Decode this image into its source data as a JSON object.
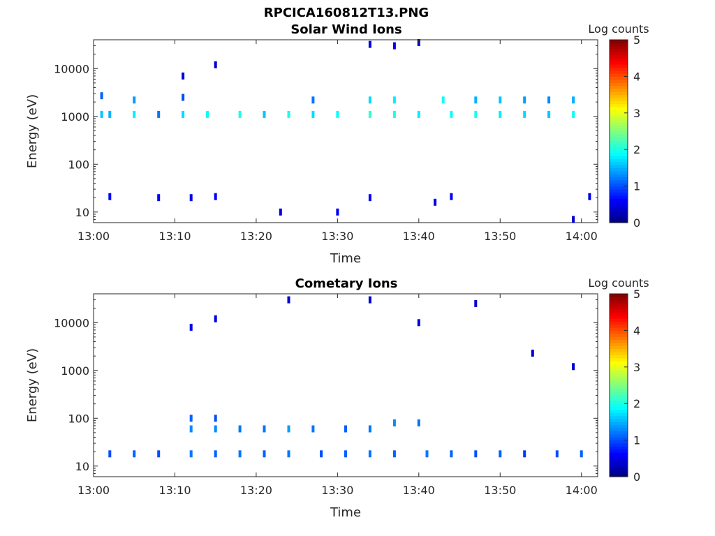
{
  "figure_title": "RPCICA160812T13.PNG",
  "colors": {
    "axis": "#262626",
    "background": "#ffffff",
    "colormap": "jet"
  },
  "chart_data": [
    {
      "type": "heatmap",
      "title": "Solar Wind Ions",
      "xlabel": "Time",
      "ylabel": "Energy (eV)",
      "xlim": [
        "13:00",
        "14:02"
      ],
      "x_ticks": [
        "13:00",
        "13:10",
        "13:20",
        "13:30",
        "13:40",
        "13:50",
        "14:00"
      ],
      "ylim": [
        6,
        40000
      ],
      "yscale": "log",
      "y_ticks": [
        "10",
        "100",
        "1000",
        "10000"
      ],
      "colorbar": {
        "label": "Log counts",
        "min": 0,
        "max": 5,
        "ticks": [
          "0",
          "1",
          "2",
          "3",
          "4",
          "5"
        ],
        "colormap": "jet"
      },
      "grid": false,
      "cells": [
        [
          "13:01",
          1100,
          1.6
        ],
        [
          "13:02",
          1100,
          1.5
        ],
        [
          "13:05",
          1100,
          1.8
        ],
        [
          "13:08",
          1100,
          1.2
        ],
        [
          "13:11",
          1100,
          1.7
        ],
        [
          "13:14",
          1100,
          1.9
        ],
        [
          "13:18",
          1100,
          2.0
        ],
        [
          "13:21",
          1100,
          1.6
        ],
        [
          "13:24",
          1100,
          2.0
        ],
        [
          "13:27",
          1100,
          1.7
        ],
        [
          "13:30",
          1100,
          1.9
        ],
        [
          "13:34",
          1100,
          2.1
        ],
        [
          "13:37",
          1100,
          2.0
        ],
        [
          "13:40",
          1100,
          1.8
        ],
        [
          "13:44",
          1100,
          1.9
        ],
        [
          "13:47",
          1100,
          2.0
        ],
        [
          "13:50",
          1100,
          1.8
        ],
        [
          "13:53",
          1100,
          1.7
        ],
        [
          "13:56",
          1100,
          1.6
        ],
        [
          "13:59",
          1100,
          1.9
        ],
        [
          "13:34",
          2200,
          1.7
        ],
        [
          "13:37",
          2200,
          1.8
        ],
        [
          "13:43",
          2200,
          1.9
        ],
        [
          "13:47",
          2200,
          1.5
        ],
        [
          "13:50",
          2200,
          1.6
        ],
        [
          "13:53",
          2200,
          1.4
        ],
        [
          "13:56",
          2200,
          1.3
        ],
        [
          "13:59",
          2200,
          1.5
        ],
        [
          "13:05",
          2200,
          1.4
        ],
        [
          "13:27",
          2200,
          1.2
        ],
        [
          "13:01",
          2700,
          1.1
        ],
        [
          "13:11",
          2500,
          1.0
        ],
        [
          "13:02",
          21,
          0.6
        ],
        [
          "13:08",
          20,
          0.6
        ],
        [
          "13:12",
          20,
          0.5
        ],
        [
          "13:15",
          21,
          0.6
        ],
        [
          "13:23",
          10,
          0.5
        ],
        [
          "13:30",
          10,
          0.6
        ],
        [
          "13:34",
          20,
          0.6
        ],
        [
          "13:42",
          16,
          0.5
        ],
        [
          "13:44",
          21,
          0.6
        ],
        [
          "13:59",
          7,
          0.4
        ],
        [
          "14:01",
          21,
          0.5
        ],
        [
          "13:40",
          35000,
          0.5
        ],
        [
          "13:37",
          30000,
          0.6
        ],
        [
          "13:34",
          32000,
          0.5
        ],
        [
          "13:11",
          7000,
          0.5
        ],
        [
          "13:15",
          12000,
          0.4
        ]
      ]
    },
    {
      "type": "heatmap",
      "title": "Cometary Ions",
      "xlabel": "Time",
      "ylabel": "Energy (eV)",
      "xlim": [
        "13:00",
        "14:02"
      ],
      "x_ticks": [
        "13:00",
        "13:10",
        "13:20",
        "13:30",
        "13:40",
        "13:50",
        "14:00"
      ],
      "ylim": [
        6,
        40000
      ],
      "yscale": "log",
      "y_ticks": [
        "10",
        "100",
        "1000",
        "10000"
      ],
      "colorbar": {
        "label": "Log counts",
        "min": 0,
        "max": 5,
        "ticks": [
          "0",
          "1",
          "2",
          "3",
          "4",
          "5"
        ],
        "colormap": "jet"
      },
      "grid": false,
      "cells": [
        [
          "13:02",
          18,
          1.0
        ],
        [
          "13:05",
          18,
          1.1
        ],
        [
          "13:08",
          18,
          1.0
        ],
        [
          "13:12",
          18,
          1.2
        ],
        [
          "13:15",
          18,
          1.1
        ],
        [
          "13:18",
          18,
          1.2
        ],
        [
          "13:21",
          18,
          1.1
        ],
        [
          "13:24",
          18,
          1.2
        ],
        [
          "13:28",
          18,
          1.0
        ],
        [
          "13:31",
          18,
          1.1
        ],
        [
          "13:34",
          18,
          1.2
        ],
        [
          "13:37",
          18,
          1.1
        ],
        [
          "13:41",
          18,
          1.2
        ],
        [
          "13:44",
          18,
          1.1
        ],
        [
          "13:47",
          18,
          1.0
        ],
        [
          "13:50",
          18,
          1.1
        ],
        [
          "13:53",
          18,
          0.9
        ],
        [
          "13:57",
          18,
          1.0
        ],
        [
          "14:00",
          18,
          1.1
        ],
        [
          "13:12",
          60,
          1.3
        ],
        [
          "13:15",
          60,
          1.3
        ],
        [
          "13:18",
          60,
          1.2
        ],
        [
          "13:21",
          60,
          1.2
        ],
        [
          "13:24",
          60,
          1.4
        ],
        [
          "13:27",
          60,
          1.2
        ],
        [
          "13:31",
          60,
          1.1
        ],
        [
          "13:34",
          60,
          1.2
        ],
        [
          "13:37",
          80,
          1.3
        ],
        [
          "13:40",
          80,
          1.2
        ],
        [
          "13:12",
          100,
          1.1
        ],
        [
          "13:15",
          100,
          1.0
        ],
        [
          "13:12",
          8000,
          0.5
        ],
        [
          "13:15",
          12000,
          0.5
        ],
        [
          "13:24",
          30000,
          0.4
        ],
        [
          "13:34",
          30000,
          0.4
        ],
        [
          "13:40",
          10000,
          0.5
        ],
        [
          "13:47",
          25000,
          0.4
        ],
        [
          "13:54",
          2300,
          0.4
        ],
        [
          "13:59",
          1200,
          0.4
        ]
      ]
    }
  ]
}
